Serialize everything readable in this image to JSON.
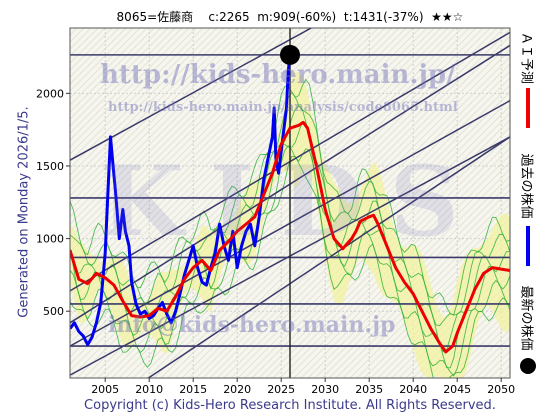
{
  "header": {
    "code_name": "8065=佐藤商",
    "stats": "c:2265  m:909(-60%)  t:1431(-37%)",
    "stars": "★★☆"
  },
  "generated_label": "Generated on Monday 2026/1/5.",
  "copyright": "Copyright (c) Kids-Hero Research Institute. All Rights Reserved.",
  "watermarks": {
    "url_main": "http://kids-hero.main.jp/",
    "url_analysis": "http://kids-hero.main.jp/analysis/code8065.html",
    "brand": "KIDS",
    "email": "info@kids-hero.main.jp"
  },
  "legend": {
    "ai_forecast": "ＡＩ予測",
    "past_price": "過去の株価",
    "latest_price": "最新の株価",
    "colors": {
      "ai_forecast": "#ee0000",
      "past_price": "#0000ee",
      "latest_price": "#000000"
    }
  },
  "chart_data": {
    "type": "line",
    "xlim": [
      2001,
      2051
    ],
    "ylim": [
      40,
      2450
    ],
    "x_ticks": [
      2005,
      2010,
      2015,
      2020,
      2025,
      2030,
      2035,
      2040,
      2045,
      2050
    ],
    "y_ticks": [
      500,
      1000,
      1500,
      2000
    ],
    "grid": true,
    "latest_point": {
      "x": 2026.0,
      "y": 2265
    },
    "horizontal_levels": [
      260,
      550,
      870,
      1280,
      2265
    ],
    "series": [
      {
        "name": "過去の株価",
        "color": "#0000ee",
        "points": [
          [
            2001.0,
            380
          ],
          [
            2001.5,
            420
          ],
          [
            2002.0,
            360
          ],
          [
            2002.5,
            330
          ],
          [
            2003.0,
            270
          ],
          [
            2003.5,
            320
          ],
          [
            2004.0,
            420
          ],
          [
            2004.5,
            560
          ],
          [
            2005.0,
            900
          ],
          [
            2005.3,
            1300
          ],
          [
            2005.6,
            1700
          ],
          [
            2005.9,
            1500
          ],
          [
            2006.2,
            1300
          ],
          [
            2006.6,
            1000
          ],
          [
            2007.0,
            1200
          ],
          [
            2007.3,
            1050
          ],
          [
            2007.7,
            950
          ],
          [
            2008.0,
            700
          ],
          [
            2008.5,
            550
          ],
          [
            2009.0,
            480
          ],
          [
            2009.5,
            500
          ],
          [
            2010.0,
            450
          ],
          [
            2010.5,
            470
          ],
          [
            2011.0,
            520
          ],
          [
            2011.5,
            560
          ],
          [
            2012.0,
            480
          ],
          [
            2012.5,
            420
          ],
          [
            2013.0,
            500
          ],
          [
            2013.5,
            620
          ],
          [
            2014.0,
            750
          ],
          [
            2014.5,
            850
          ],
          [
            2015.0,
            950
          ],
          [
            2015.5,
            800
          ],
          [
            2016.0,
            700
          ],
          [
            2016.5,
            680
          ],
          [
            2017.0,
            800
          ],
          [
            2017.5,
            900
          ],
          [
            2018.0,
            1100
          ],
          [
            2018.5,
            950
          ],
          [
            2019.0,
            850
          ],
          [
            2019.5,
            1050
          ],
          [
            2020.0,
            800
          ],
          [
            2020.5,
            950
          ],
          [
            2021.0,
            1050
          ],
          [
            2021.5,
            1100
          ],
          [
            2022.0,
            950
          ],
          [
            2022.5,
            1150
          ],
          [
            2023.0,
            1400
          ],
          [
            2023.5,
            1550
          ],
          [
            2024.0,
            1700
          ],
          [
            2024.2,
            1900
          ],
          [
            2024.4,
            1550
          ],
          [
            2024.7,
            1450
          ],
          [
            2025.0,
            1600
          ],
          [
            2025.3,
            1750
          ],
          [
            2025.6,
            1900
          ],
          [
            2025.8,
            2150
          ],
          [
            2026.0,
            2265
          ]
        ]
      },
      {
        "name": "ＡＩ予測",
        "color": "#ee0000",
        "points": [
          [
            2001.0,
            920
          ],
          [
            2001.5,
            820
          ],
          [
            2002.0,
            720
          ],
          [
            2003.0,
            690
          ],
          [
            2004.0,
            760
          ],
          [
            2005.0,
            730
          ],
          [
            2006.0,
            680
          ],
          [
            2007.0,
            570
          ],
          [
            2008.0,
            470
          ],
          [
            2009.0,
            460
          ],
          [
            2010.0,
            470
          ],
          [
            2011.0,
            520
          ],
          [
            2012.0,
            500
          ],
          [
            2013.0,
            600
          ],
          [
            2014.0,
            720
          ],
          [
            2015.0,
            800
          ],
          [
            2016.0,
            850
          ],
          [
            2017.0,
            780
          ],
          [
            2018.0,
            920
          ],
          [
            2019.0,
            980
          ],
          [
            2020.0,
            1050
          ],
          [
            2021.0,
            1100
          ],
          [
            2022.0,
            1150
          ],
          [
            2023.0,
            1300
          ],
          [
            2024.0,
            1450
          ],
          [
            2025.0,
            1650
          ],
          [
            2026.0,
            1760
          ],
          [
            2027.0,
            1780
          ],
          [
            2027.5,
            1800
          ],
          [
            2028.0,
            1760
          ],
          [
            2029.0,
            1500
          ],
          [
            2030.0,
            1200
          ],
          [
            2031.0,
            1000
          ],
          [
            2032.0,
            930
          ],
          [
            2033.0,
            1000
          ],
          [
            2033.5,
            1050
          ],
          [
            2034.0,
            1120
          ],
          [
            2035.0,
            1150
          ],
          [
            2035.5,
            1160
          ],
          [
            2036.0,
            1100
          ],
          [
            2037.0,
            950
          ],
          [
            2038.0,
            800
          ],
          [
            2039.0,
            700
          ],
          [
            2040.0,
            620
          ],
          [
            2041.0,
            500
          ],
          [
            2042.0,
            380
          ],
          [
            2043.0,
            280
          ],
          [
            2043.7,
            220
          ],
          [
            2044.5,
            260
          ],
          [
            2045.0,
            350
          ],
          [
            2046.0,
            500
          ],
          [
            2047.0,
            650
          ],
          [
            2048.0,
            760
          ],
          [
            2049.0,
            800
          ],
          [
            2050.0,
            790
          ],
          [
            2051.0,
            780
          ]
        ]
      }
    ]
  }
}
